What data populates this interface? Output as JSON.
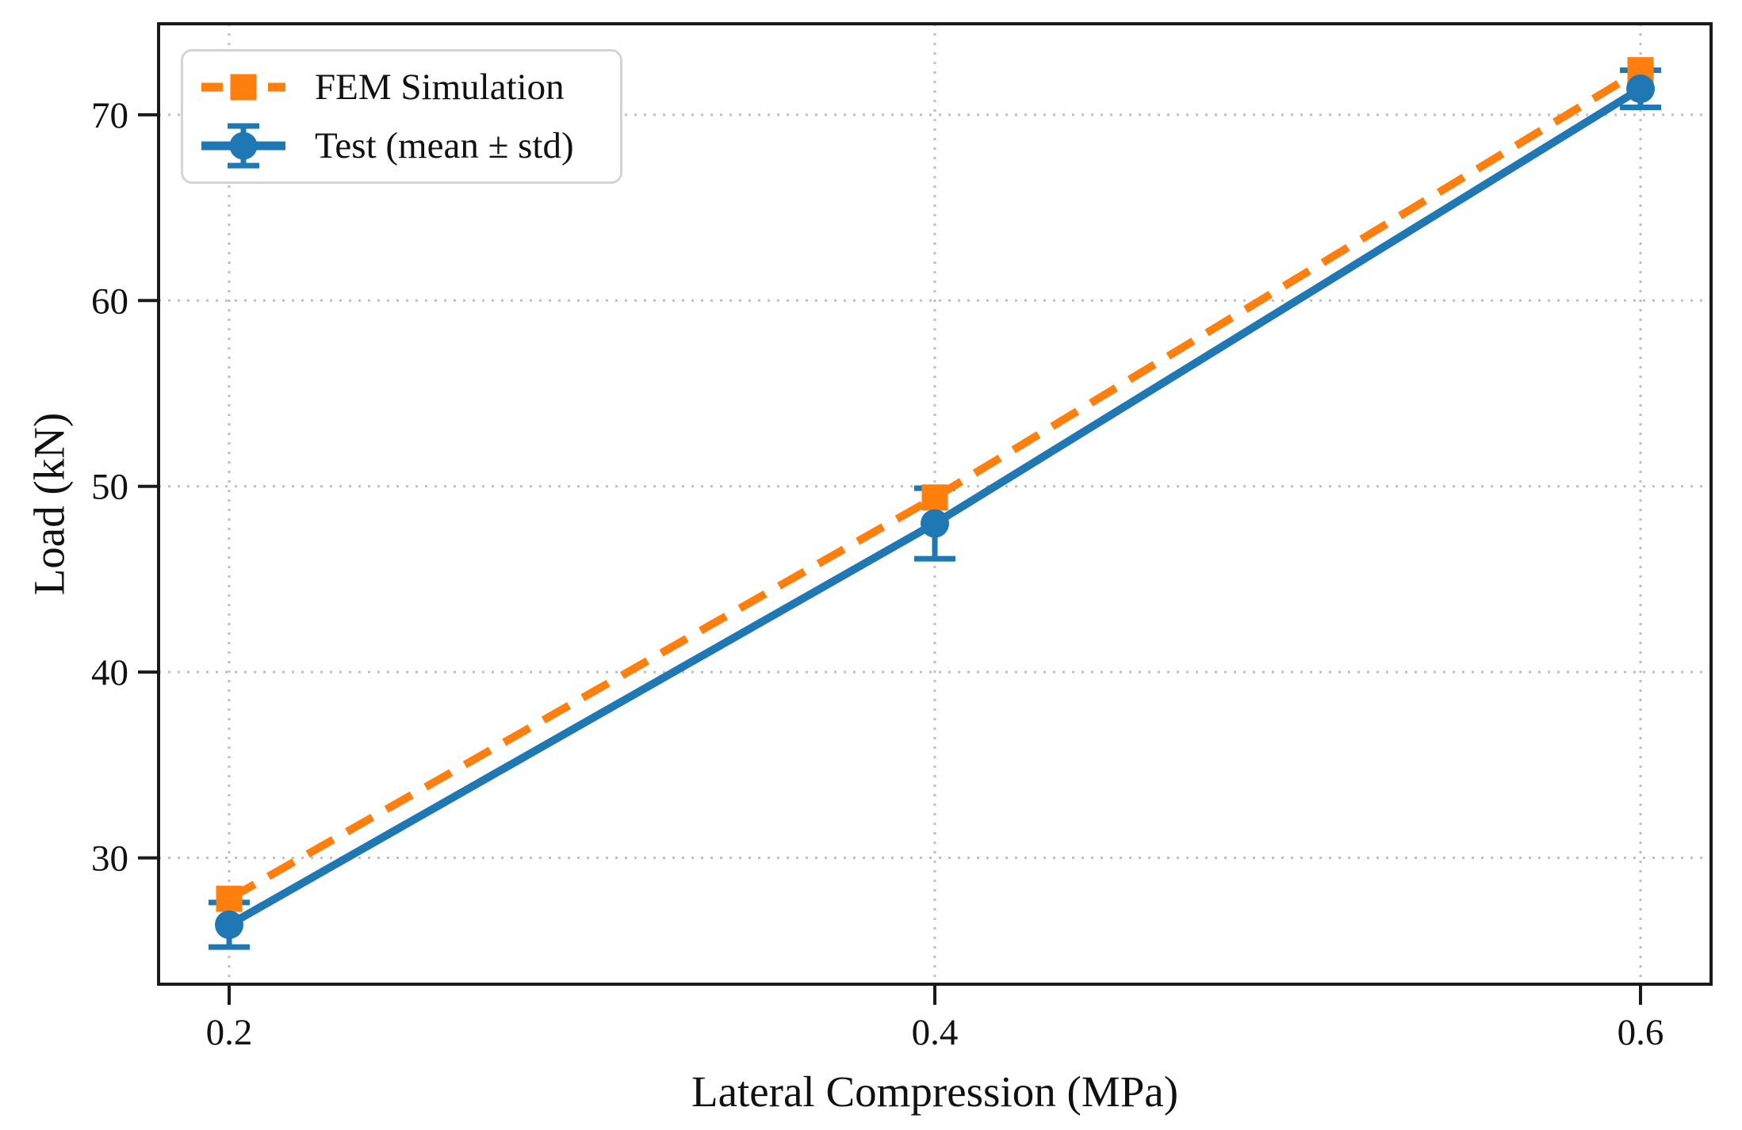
{
  "figure": {
    "background": "#ffffff",
    "spine_color": "#1a1a1a",
    "grid_color": "#bfbfbf",
    "text_color": "#111111",
    "legend_border_color": "#d4d4d4"
  },
  "chart_data": {
    "type": "line",
    "title": "",
    "xlabel": "Lateral Compression (MPa)",
    "ylabel": "Load (kN)",
    "x": [
      0.2,
      0.4,
      0.6
    ],
    "series": [
      {
        "name": "FEM Simulation",
        "values": [
          27.8,
          49.4,
          72.4
        ],
        "color": "#ff7f0e",
        "line_style": "dashed",
        "marker": "square"
      },
      {
        "name": "Test (mean ± std)",
        "values": [
          26.4,
          48.0,
          71.4
        ],
        "std": [
          1.2,
          1.9,
          1.0
        ],
        "color": "#1f77b4",
        "line_style": "solid",
        "marker": "circle"
      }
    ],
    "xticks": [
      0.2,
      0.4,
      0.6
    ],
    "xtick_labels": [
      "0.2",
      "0.4",
      "0.6"
    ],
    "yticks": [
      30,
      40,
      50,
      60,
      70
    ],
    "ytick_labels": [
      "30",
      "40",
      "50",
      "60",
      "70"
    ],
    "xlim": [
      0.18,
      0.62
    ],
    "ylim": [
      23.2,
      74.9
    ],
    "grid": true,
    "grid_style": "dotted",
    "legend_position": "upper-left"
  }
}
